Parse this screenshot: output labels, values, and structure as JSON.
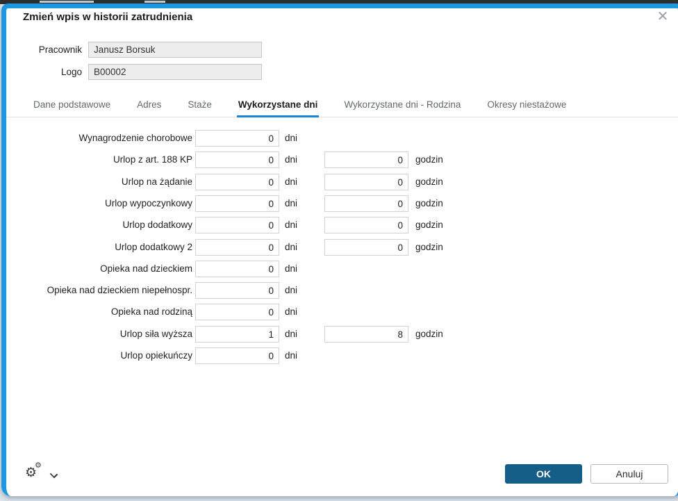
{
  "dialog": {
    "title": "Zmień wpis w historii zatrudnienia",
    "icons": {
      "close": "✕",
      "gear": "⚙",
      "chevron_down": "chevron-down"
    },
    "colors": {
      "accent_border": "#1d97e2",
      "tab_underline": "#1787d5",
      "ok_button": "#155e87"
    },
    "header_fields": [
      {
        "label": "Pracownik",
        "value": "Janusz Borsuk"
      },
      {
        "label": "Logo",
        "value": "B00002"
      }
    ],
    "tabs": [
      {
        "label": "Dane podstawowe",
        "active": false
      },
      {
        "label": "Adres",
        "active": false
      },
      {
        "label": "Staże",
        "active": false
      },
      {
        "label": "Wykorzystane dni",
        "active": true
      },
      {
        "label": "Wykorzystane dni - Rodzina",
        "active": false
      },
      {
        "label": "Okresy niestażowe",
        "active": false
      }
    ],
    "form": {
      "days_unit": "dni",
      "hours_unit": "godzin",
      "rows": [
        {
          "label": "Wynagrodzenie chorobowe",
          "days": "0",
          "hours": null
        },
        {
          "label": "Urlop z art. 188 KP",
          "days": "0",
          "hours": "0"
        },
        {
          "label": "Urlop na żądanie",
          "days": "0",
          "hours": "0"
        },
        {
          "label": "Urlop wypoczynkowy",
          "days": "0",
          "hours": "0"
        },
        {
          "label": "Urlop dodatkowy",
          "days": "0",
          "hours": "0"
        },
        {
          "label": "Urlop dodatkowy 2",
          "days": "0",
          "hours": "0"
        },
        {
          "label": "Opieka nad dzieckiem",
          "days": "0",
          "hours": null
        },
        {
          "label": "Opieka nad dzieckiem niepełnospr.",
          "days": "0",
          "hours": null
        },
        {
          "label": "Opieka nad rodziną",
          "days": "0",
          "hours": null
        },
        {
          "label": "Urlop siła wyższa",
          "days": "1",
          "hours": "8"
        },
        {
          "label": "Urlop opiekuńczy",
          "days": "0",
          "hours": null
        }
      ]
    },
    "footer": {
      "ok_label": "OK",
      "cancel_label": "Anuluj"
    }
  }
}
